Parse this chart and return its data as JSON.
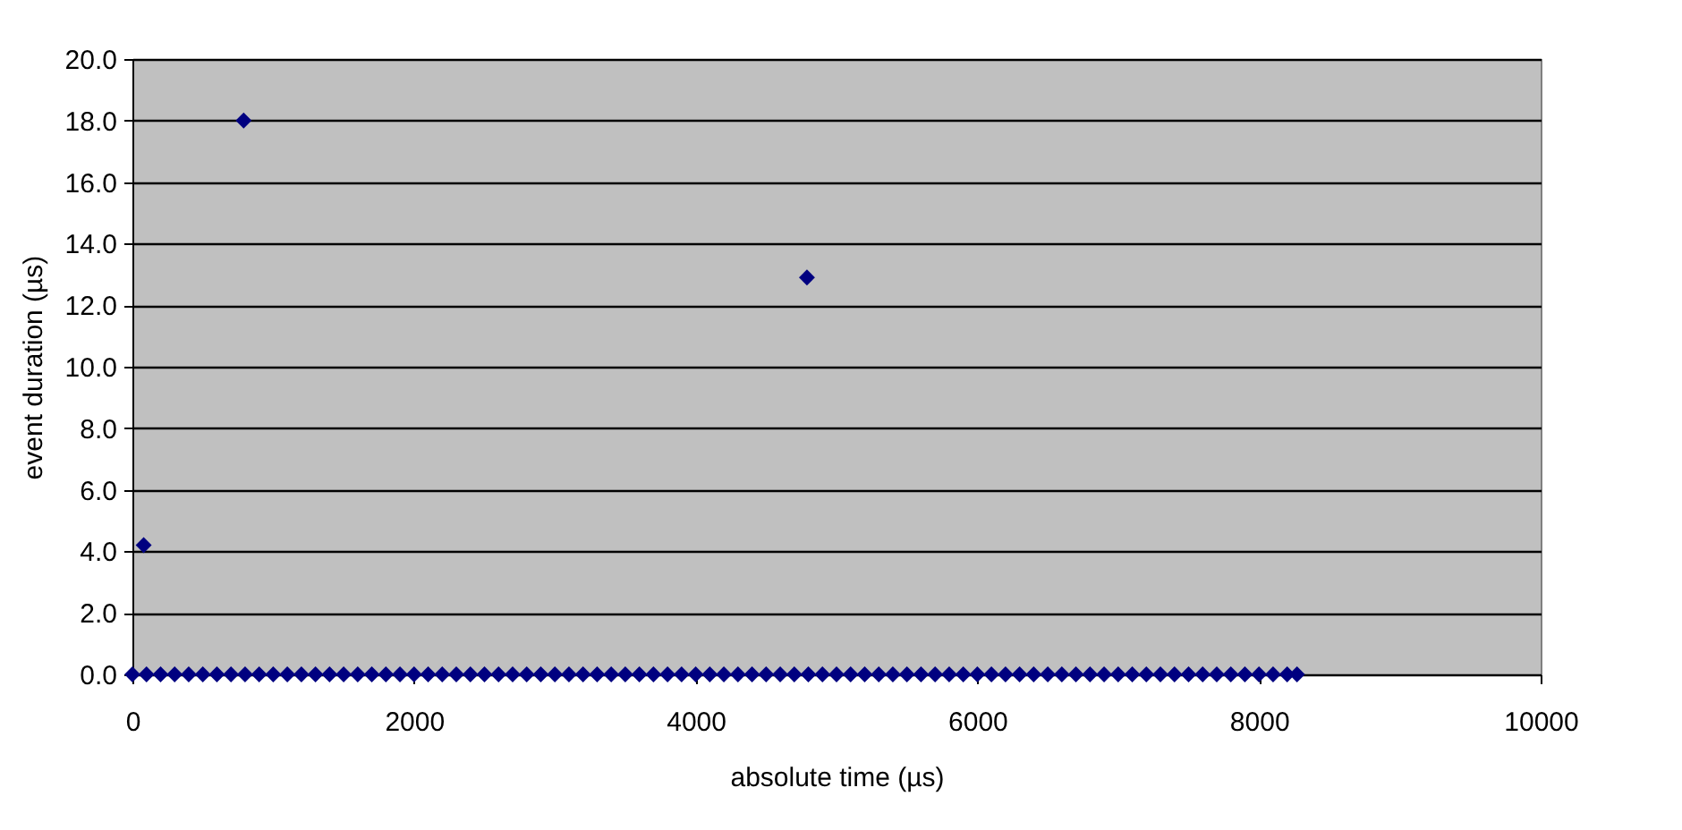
{
  "chart_data": {
    "type": "scatter",
    "xlabel": "absolute time (µs)",
    "ylabel": "event duration (µs)",
    "xlim": [
      0,
      10000
    ],
    "xticks": [
      0,
      2000,
      4000,
      6000,
      8000,
      10000
    ],
    "ylim": [
      0,
      20
    ],
    "yticks": [
      {
        "value": 0,
        "label": "0.0"
      },
      {
        "value": 2,
        "label": "2.0"
      },
      {
        "value": 4,
        "label": "4.0"
      },
      {
        "value": 6,
        "label": "6.0"
      },
      {
        "value": 8,
        "label": "8.0"
      },
      {
        "value": 10,
        "label": "10.0"
      },
      {
        "value": 12,
        "label": "12.0"
      },
      {
        "value": 14,
        "label": "14.0"
      },
      {
        "value": 16,
        "label": "16.0"
      },
      {
        "value": 18,
        "label": "18.0"
      },
      {
        "value": 20,
        "label": "20.0"
      }
    ],
    "grid": "y",
    "marker": "diamond",
    "legend": false,
    "series": [
      {
        "color": "#000080",
        "x": [
          80,
          790,
          4790,
          0,
          100,
          200,
          300,
          400,
          500,
          600,
          700,
          800,
          900,
          1000,
          1100,
          1200,
          1300,
          1400,
          1500,
          1600,
          1700,
          1800,
          1900,
          2000,
          2100,
          2200,
          2300,
          2400,
          2500,
          2600,
          2700,
          2800,
          2900,
          3000,
          3100,
          3200,
          3300,
          3400,
          3500,
          3600,
          3700,
          3800,
          3900,
          4000,
          4100,
          4200,
          4300,
          4400,
          4500,
          4600,
          4700,
          4800,
          4900,
          5000,
          5100,
          5200,
          5300,
          5400,
          5500,
          5600,
          5700,
          5800,
          5900,
          6000,
          6100,
          6200,
          6300,
          6400,
          6500,
          6600,
          6700,
          6800,
          6900,
          7000,
          7100,
          7200,
          7300,
          7400,
          7500,
          7600,
          7700,
          7800,
          7900,
          8000,
          8100,
          8200,
          8270
        ],
        "values": [
          4.2,
          18.0,
          12.9,
          0,
          0,
          0,
          0,
          0,
          0,
          0,
          0,
          0,
          0,
          0,
          0,
          0,
          0,
          0,
          0,
          0,
          0,
          0,
          0,
          0,
          0,
          0,
          0,
          0,
          0,
          0,
          0,
          0,
          0,
          0,
          0,
          0,
          0,
          0,
          0,
          0,
          0,
          0,
          0,
          0,
          0,
          0,
          0,
          0,
          0,
          0,
          0,
          0,
          0,
          0,
          0,
          0,
          0,
          0,
          0,
          0,
          0,
          0,
          0,
          0,
          0,
          0,
          0,
          0,
          0,
          0,
          0,
          0,
          0,
          0,
          0,
          0,
          0,
          0,
          0,
          0,
          0,
          0,
          0,
          0,
          0,
          0,
          0
        ]
      }
    ]
  }
}
